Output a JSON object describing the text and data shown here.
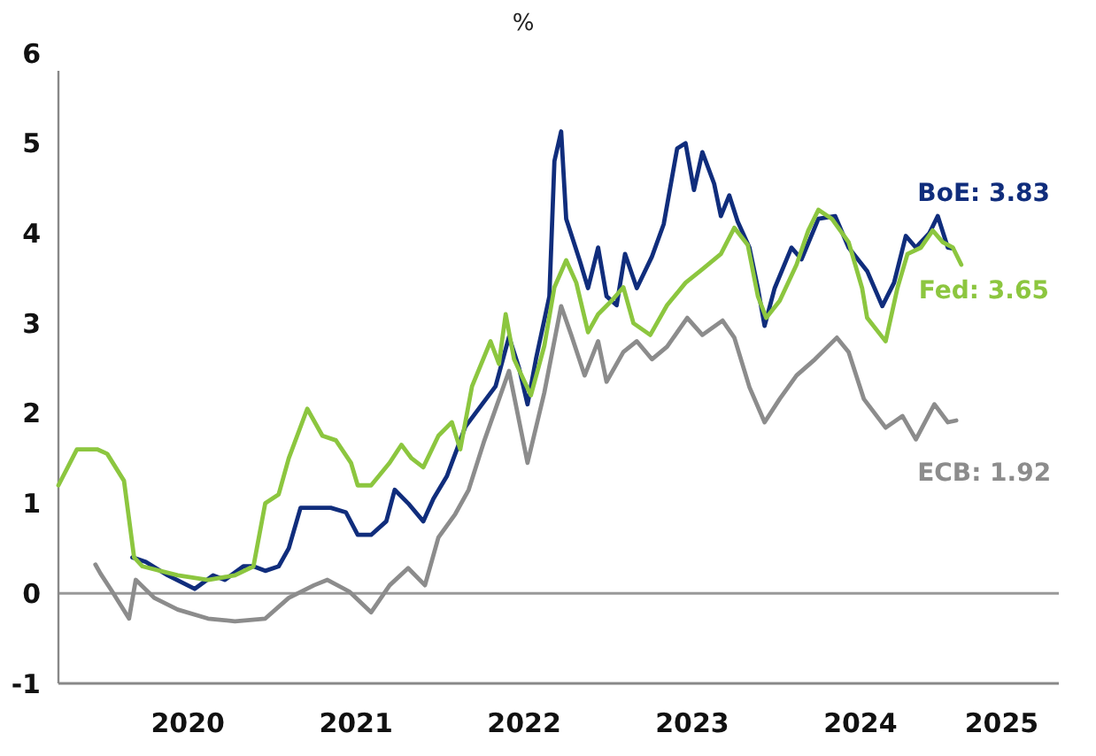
{
  "chart_data": {
    "type": "line",
    "title": "%",
    "xlim": [
      2019.73,
      2025.68
    ],
    "xticks": [
      {
        "value": 2020.5,
        "label": "2020"
      },
      {
        "value": 2021.5,
        "label": "2021"
      },
      {
        "value": 2022.5,
        "label": "2022"
      },
      {
        "value": 2023.5,
        "label": "2023"
      },
      {
        "value": 2024.5,
        "label": "2024"
      },
      {
        "value": 2025.34,
        "label": "2025"
      }
    ],
    "ylim": [
      -1,
      6
    ],
    "yticks": [
      -1,
      0,
      1,
      2,
      3,
      4,
      5,
      6
    ],
    "grid": false,
    "ref_lines": [
      {
        "axis": "y",
        "value": 0,
        "color": "#999999"
      }
    ],
    "series": [
      {
        "name": "BoE: 3.83",
        "color": "#102d7c",
        "x": [
          2020.17,
          2020.25,
          2020.38,
          2020.54,
          2020.65,
          2020.72,
          2020.83,
          2020.89,
          2020.96,
          2021.04,
          2021.1,
          2021.17,
          2021.35,
          2021.44,
          2021.51,
          2021.59,
          2021.68,
          2021.73,
          2021.81,
          2021.9,
          2021.96,
          2022.04,
          2022.1,
          2022.15,
          2022.25,
          2022.33,
          2022.41,
          2022.47,
          2022.52,
          2022.57,
          2022.65,
          2022.68,
          2022.72,
          2022.75,
          2022.83,
          2022.88,
          2022.94,
          2022.99,
          2023.05,
          2023.1,
          2023.17,
          2023.26,
          2023.33,
          2023.41,
          2023.46,
          2023.51,
          2023.56,
          2023.63,
          2023.67,
          2023.72,
          2023.77,
          2023.84,
          2023.89,
          2023.93,
          2023.99,
          2024.09,
          2024.15,
          2024.25,
          2024.35,
          2024.43,
          2024.54,
          2024.63,
          2024.7,
          2024.77,
          2024.83,
          2024.91,
          2024.96,
          2025.02,
          2025.05
        ],
        "values": [
          0.4,
          0.35,
          0.2,
          0.05,
          0.2,
          0.15,
          0.3,
          0.3,
          0.25,
          0.3,
          0.5,
          0.95,
          0.95,
          0.9,
          0.65,
          0.65,
          0.8,
          1.15,
          1.0,
          0.8,
          1.05,
          1.3,
          1.6,
          1.85,
          2.1,
          2.3,
          2.85,
          2.5,
          2.1,
          2.6,
          3.3,
          4.8,
          5.13,
          4.16,
          3.7,
          3.39,
          3.84,
          3.3,
          3.2,
          3.77,
          3.39,
          3.74,
          4.1,
          4.94,
          5.0,
          4.48,
          4.9,
          4.55,
          4.19,
          4.42,
          4.13,
          3.84,
          3.39,
          2.97,
          3.39,
          3.84,
          3.71,
          4.16,
          4.19,
          3.84,
          3.58,
          3.19,
          3.45,
          3.97,
          3.84,
          4.0,
          4.19,
          3.84,
          3.83
        ]
      },
      {
        "name": "Fed: 3.65",
        "color": "#8cc63f",
        "x": [
          2019.73,
          2019.84,
          2019.96,
          2020.02,
          2020.12,
          2020.18,
          2020.23,
          2020.44,
          2020.62,
          2020.78,
          2020.89,
          2020.96,
          2021.04,
          2021.1,
          2021.21,
          2021.3,
          2021.38,
          2021.47,
          2021.51,
          2021.59,
          2021.7,
          2021.77,
          2021.83,
          2021.9,
          2021.99,
          2022.07,
          2022.12,
          2022.19,
          2022.3,
          2022.35,
          2022.39,
          2022.44,
          2022.54,
          2022.62,
          2022.68,
          2022.75,
          2022.81,
          2022.88,
          2022.94,
          2023.02,
          2023.09,
          2023.15,
          2023.25,
          2023.35,
          2023.46,
          2023.56,
          2023.67,
          2023.75,
          2023.83,
          2023.89,
          2023.94,
          2024.02,
          2024.12,
          2024.19,
          2024.25,
          2024.33,
          2024.43,
          2024.51,
          2024.54,
          2024.62,
          2024.65,
          2024.72,
          2024.78,
          2024.86,
          2024.93,
          2024.99,
          2025.05,
          2025.1
        ],
        "values": [
          1.2,
          1.6,
          1.6,
          1.55,
          1.25,
          0.4,
          0.3,
          0.2,
          0.15,
          0.2,
          0.3,
          1.0,
          1.1,
          1.5,
          2.05,
          1.75,
          1.7,
          1.45,
          1.2,
          1.2,
          1.45,
          1.65,
          1.5,
          1.4,
          1.75,
          1.9,
          1.6,
          2.3,
          2.8,
          2.55,
          3.1,
          2.6,
          2.2,
          2.75,
          3.4,
          3.7,
          3.45,
          2.9,
          3.1,
          3.25,
          3.4,
          3.0,
          2.87,
          3.2,
          3.45,
          3.6,
          3.77,
          4.06,
          3.87,
          3.3,
          3.06,
          3.25,
          3.65,
          4.03,
          4.26,
          4.16,
          3.9,
          3.39,
          3.06,
          2.87,
          2.8,
          3.39,
          3.77,
          3.84,
          4.03,
          3.9,
          3.84,
          3.65
        ]
      },
      {
        "name": "ECB: 1.92",
        "color": "#8c8c8c",
        "x": [
          2019.95,
          2019.98,
          2020.05,
          2020.15,
          2020.19,
          2020.3,
          2020.44,
          2020.62,
          2020.78,
          2020.96,
          2021.1,
          2021.25,
          2021.33,
          2021.46,
          2021.59,
          2021.7,
          2021.81,
          2021.91,
          2021.99,
          2022.09,
          2022.17,
          2022.26,
          2022.41,
          2022.52,
          2022.62,
          2022.72,
          2022.78,
          2022.86,
          2022.94,
          2022.99,
          2023.09,
          2023.17,
          2023.26,
          2023.35,
          2023.47,
          2023.56,
          2023.68,
          2023.75,
          2023.84,
          2023.93,
          2024.02,
          2024.12,
          2024.23,
          2024.36,
          2024.43,
          2024.52,
          2024.65,
          2024.75,
          2024.83,
          2024.94,
          2025.02,
          2025.07
        ],
        "values": [
          0.32,
          0.22,
          0.02,
          -0.28,
          0.15,
          -0.05,
          -0.18,
          -0.28,
          -0.31,
          -0.28,
          -0.05,
          0.09,
          0.15,
          0.02,
          -0.21,
          0.09,
          0.28,
          0.09,
          0.62,
          0.88,
          1.15,
          1.68,
          2.47,
          1.45,
          2.23,
          3.19,
          2.87,
          2.42,
          2.8,
          2.35,
          2.68,
          2.8,
          2.6,
          2.74,
          3.06,
          2.87,
          3.03,
          2.84,
          2.29,
          1.9,
          2.16,
          2.42,
          2.6,
          2.84,
          2.68,
          2.16,
          1.84,
          1.97,
          1.71,
          2.1,
          1.9,
          1.92
        ]
      }
    ]
  }
}
